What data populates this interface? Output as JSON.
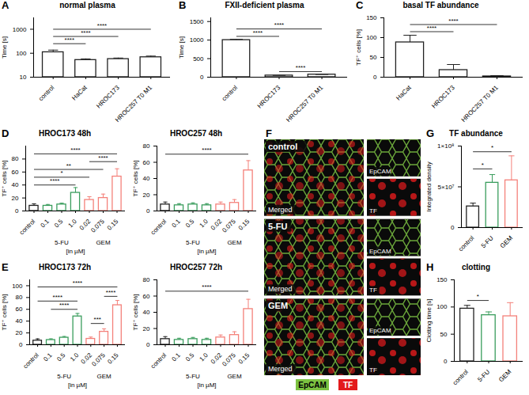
{
  "chart_data": [
    {
      "type": "bar",
      "panel": "A",
      "title": "normal plasma",
      "y_label": "Time [s]",
      "categories": [
        "control",
        "HaCat",
        "HROC173",
        "HROC257 T0 M1"
      ],
      "values": [
        110,
        52,
        57,
        68
      ],
      "errors": [
        25,
        6,
        6,
        8
      ],
      "colors": [
        "#222222",
        "#222222",
        "#222222",
        "#222222"
      ],
      "log": "y",
      "ylim": [
        10,
        3000
      ],
      "yticks": [
        10,
        100,
        1000
      ],
      "annotations": [
        {
          "from": "control",
          "to": "HaCat",
          "y": 250,
          "label": "****"
        },
        {
          "from": "control",
          "to": "HROC173",
          "y": 500,
          "label": "****"
        },
        {
          "from": "control",
          "to": "HROC257 T0 M1",
          "y": 1000,
          "label": "****"
        }
      ]
    },
    {
      "type": "bar",
      "panel": "B",
      "title": "FXII-deficient plasma",
      "y_label": "Time [s]",
      "categories": [
        "control",
        "HROC173",
        "HROC257 T0 M1"
      ],
      "values": [
        1000,
        45,
        70
      ],
      "errors": [
        20,
        3,
        4
      ],
      "colors": [
        "#222222",
        "#222222",
        "#222222"
      ],
      "ylim": [
        0,
        1600
      ],
      "yticks": [
        0,
        500,
        1000,
        1500
      ],
      "annotations": [
        {
          "from": "control",
          "to": "HROC173",
          "y": 1100,
          "label": "****"
        },
        {
          "from": "control",
          "to": "HROC257 T0 M1",
          "y": 1300,
          "label": "****"
        },
        {
          "from": "HROC173",
          "to": "HROC257 T0 M1",
          "y": 150,
          "label": "****"
        }
      ]
    },
    {
      "type": "bar",
      "panel": "C",
      "title": "basal TF abundance",
      "y_label": "TF⁺ cells [%]",
      "categories": [
        "HaCat",
        "HROC173",
        "HROC257 T0 M1"
      ],
      "values": [
        88,
        18,
        2
      ],
      "errors": [
        18,
        14,
        2
      ],
      "colors": [
        "#222222",
        "#222222",
        "#222222"
      ],
      "ylim": [
        0,
        150
      ],
      "yticks": [
        0,
        50,
        100,
        150
      ],
      "annotations": [
        {
          "from": "HaCat",
          "to": "HROC173",
          "y": 115,
          "label": "****"
        },
        {
          "from": "HaCat",
          "to": "HROC257 T0 M1",
          "y": 133,
          "label": "****"
        }
      ]
    },
    {
      "type": "bar",
      "panel": "D",
      "title": "HROC173 48h",
      "y_label": "TF⁺ cells [%]",
      "categories": [
        "control",
        "0.1",
        "0.5",
        "1.0",
        "0.02",
        "0.075",
        "0.15"
      ],
      "values": [
        8,
        8,
        10,
        28,
        17,
        20,
        53
      ],
      "errors": [
        3,
        2,
        2,
        8,
        5,
        6,
        12
      ],
      "colors": [
        "#222222",
        "#3a9d5d",
        "#3a9d5d",
        "#3a9d5d",
        "#f4817a",
        "#f4817a",
        "#f4817a"
      ],
      "ylim": [
        0,
        100
      ],
      "yticks": [
        0,
        20,
        40,
        60,
        80
      ],
      "x_groups": [
        {
          "label": "5-FU",
          "categories": [
            "0.1",
            "0.5",
            "1.0"
          ]
        },
        {
          "label": "GEM",
          "categories": [
            "0.02",
            "0.075",
            "0.15"
          ]
        }
      ],
      "x_unit": "[in µM]",
      "annotations": [
        {
          "from": "control",
          "to": "1.0",
          "y": 40,
          "label": "****"
        },
        {
          "from": "control",
          "to": "0.02",
          "y": 52,
          "label": "*"
        },
        {
          "from": "control",
          "to": "0.075",
          "y": 64,
          "label": "**"
        },
        {
          "from": "0.02",
          "to": "0.15",
          "y": 76,
          "label": "****"
        },
        {
          "from": "control",
          "to": "0.15",
          "y": 88,
          "label": "****"
        }
      ]
    },
    {
      "type": "bar",
      "title": "HROC257 48h",
      "y_label": "TF⁺ cells [%]",
      "categories": [
        "control",
        "0.1",
        "0.5",
        "1.0",
        "0.02",
        "0.075",
        "0.15"
      ],
      "values": [
        8,
        7,
        8,
        7,
        8,
        10,
        50
      ],
      "errors": [
        3,
        2,
        2,
        2,
        3,
        4,
        12
      ],
      "colors": [
        "#222222",
        "#3a9d5d",
        "#3a9d5d",
        "#3a9d5d",
        "#f4817a",
        "#f4817a",
        "#f4817a"
      ],
      "ylim": [
        0,
        80
      ],
      "yticks": [
        0,
        20,
        40,
        60,
        80
      ],
      "x_groups": [
        {
          "label": "5-FU",
          "categories": [
            "0.1",
            "0.5",
            "1.0"
          ]
        },
        {
          "label": "GEM",
          "categories": [
            "0.02",
            "0.075",
            "0.15"
          ]
        }
      ],
      "x_unit": "[in µM]",
      "annotations": [
        {
          "from": "control",
          "to": "0.15",
          "y": 70,
          "label": "****"
        }
      ]
    },
    {
      "type": "bar",
      "panel": "E",
      "title": "HROC173 72h",
      "y_label": "TF⁺ cells [%]",
      "categories": [
        "control",
        "0.1",
        "0.5",
        "1.0",
        "0.02",
        "0.075",
        "0.15"
      ],
      "values": [
        7,
        8,
        12,
        48,
        10,
        22,
        67
      ],
      "errors": [
        3,
        2,
        2,
        5,
        3,
        5,
        8
      ],
      "colors": [
        "#222222",
        "#3a9d5d",
        "#3a9d5d",
        "#3a9d5d",
        "#f4817a",
        "#f4817a",
        "#f4817a"
      ],
      "ylim": [
        0,
        110
      ],
      "yticks": [
        0,
        20,
        40,
        60,
        80,
        100
      ],
      "x_groups": [
        {
          "label": "5-FU",
          "categories": [
            "0.1",
            "0.5",
            "1.0"
          ]
        },
        {
          "label": "GEM",
          "categories": [
            "0.02",
            "0.075",
            "0.15"
          ]
        }
      ],
      "x_unit": "[in µM]",
      "annotations": [
        {
          "from": "0.02",
          "to": "0.075",
          "y": 36,
          "label": "***"
        },
        {
          "from": "0.1",
          "to": "1.0",
          "y": 60,
          "label": "****"
        },
        {
          "from": "control",
          "to": "1.0",
          "y": 74,
          "label": "****"
        },
        {
          "from": "0.075",
          "to": "0.15",
          "y": 82,
          "label": "****"
        },
        {
          "from": "control",
          "to": "0.15",
          "y": 98,
          "label": "****"
        }
      ]
    },
    {
      "type": "bar",
      "title": "HROC257 72h",
      "y_label": "TF⁺ cells [%]",
      "categories": [
        "control",
        "0.1",
        "0.5",
        "1.0",
        "0.02",
        "0.075",
        "0.15"
      ],
      "values": [
        7,
        6,
        7,
        6,
        9,
        12,
        44
      ],
      "errors": [
        3,
        2,
        2,
        2,
        3,
        4,
        12
      ],
      "colors": [
        "#222222",
        "#3a9d5d",
        "#3a9d5d",
        "#3a9d5d",
        "#f4817a",
        "#f4817a",
        "#f4817a"
      ],
      "ylim": [
        0,
        80
      ],
      "yticks": [
        0,
        20,
        40,
        60,
        80
      ],
      "x_groups": [
        {
          "label": "5-FU",
          "categories": [
            "0.1",
            "0.5",
            "1.0"
          ]
        },
        {
          "label": "GEM",
          "categories": [
            "0.02",
            "0.075",
            "0.15"
          ]
        }
      ],
      "x_unit": "[in µM]",
      "annotations": [
        {
          "from": "control",
          "to": "0.15",
          "y": 66,
          "label": "****"
        }
      ]
    },
    {
      "type": "bar",
      "panel": "G",
      "title": "TF abundance",
      "y_label": "Integrated density",
      "categories": [
        "control",
        "5-FU",
        "GEM"
      ],
      "values": [
        26000000,
        55000000,
        58000000
      ],
      "errors": [
        4000000,
        10000000,
        30000000
      ],
      "colors": [
        "#222222",
        "#3a9d5d",
        "#f4817a"
      ],
      "ylim": [
        0,
        100000000
      ],
      "yticks": [
        0,
        {
          "value": 50000000,
          "label": "5×10⁷"
        },
        {
          "value": 100000000,
          "label": "1×10⁸"
        }
      ],
      "annotations": [
        {
          "from": "control",
          "to": "5-FU",
          "y": 72000000,
          "label": "*"
        },
        {
          "from": "control",
          "to": "GEM",
          "y": 93000000,
          "label": "*"
        }
      ]
    },
    {
      "type": "bar",
      "panel": "H",
      "title": "clotting",
      "y_label": "Clotting time [s]",
      "categories": [
        "control",
        "5-FU",
        "GEM"
      ],
      "values": [
        97,
        85,
        83
      ],
      "errors": [
        6,
        6,
        25
      ],
      "colors": [
        "#222222",
        "#3a9d5d",
        "#f4817a"
      ],
      "ylim": [
        0,
        150
      ],
      "yticks": [
        0,
        50,
        100,
        150
      ],
      "annotations": [
        {
          "from": "control",
          "to": "5-FU",
          "y": 112,
          "label": "*"
        }
      ]
    },
    {
      "type": "image",
      "panel": "F",
      "rows": [
        "control",
        "5-FU",
        "GEM"
      ],
      "merged_label": "Merged",
      "channels": [
        {
          "name": "EpCAM",
          "color": "#7cc242"
        },
        {
          "name": "TF",
          "color": "#e31a1c"
        }
      ]
    }
  ]
}
